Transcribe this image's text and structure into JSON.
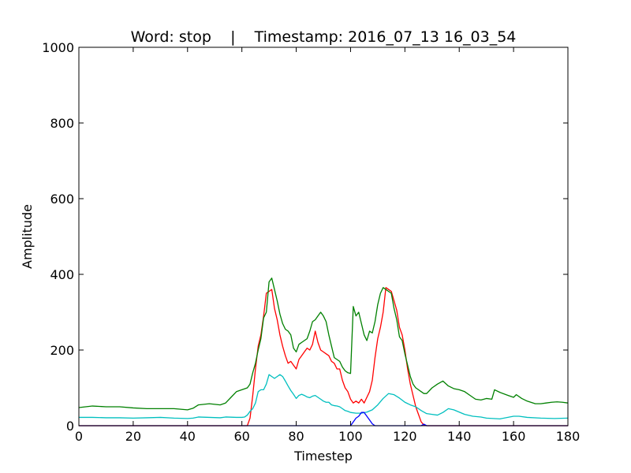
{
  "chart_data": {
    "type": "line",
    "title": "Word: stop    |    Timestamp: 2016_07_13 16_03_54",
    "xlabel": "Timestep",
    "ylabel": "Amplitude",
    "xlim": [
      0,
      180
    ],
    "ylim": [
      0,
      1000
    ],
    "xticks": [
      0,
      20,
      40,
      60,
      80,
      100,
      120,
      140,
      160,
      180
    ],
    "yticks": [
      0,
      200,
      400,
      600,
      800,
      1000
    ],
    "grid": false,
    "legend": null,
    "series": [
      {
        "color": "#ff0000",
        "points": [
          [
            0,
            0
          ],
          [
            60,
            0
          ],
          [
            62,
            0
          ],
          [
            63,
            20
          ],
          [
            64,
            80
          ],
          [
            65,
            150
          ],
          [
            66,
            210
          ],
          [
            67,
            240
          ],
          [
            68,
            290
          ],
          [
            69,
            350
          ],
          [
            70,
            355
          ],
          [
            71,
            360
          ],
          [
            72,
            310
          ],
          [
            73,
            280
          ],
          [
            74,
            240
          ],
          [
            75,
            210
          ],
          [
            76,
            185
          ],
          [
            77,
            165
          ],
          [
            78,
            170
          ],
          [
            79,
            160
          ],
          [
            80,
            150
          ],
          [
            81,
            175
          ],
          [
            82,
            185
          ],
          [
            83,
            195
          ],
          [
            84,
            205
          ],
          [
            85,
            200
          ],
          [
            86,
            215
          ],
          [
            87,
            250
          ],
          [
            88,
            220
          ],
          [
            89,
            200
          ],
          [
            90,
            195
          ],
          [
            91,
            190
          ],
          [
            92,
            185
          ],
          [
            93,
            170
          ],
          [
            94,
            165
          ],
          [
            95,
            150
          ],
          [
            96,
            150
          ],
          [
            97,
            120
          ],
          [
            98,
            100
          ],
          [
            99,
            90
          ],
          [
            100,
            70
          ],
          [
            101,
            60
          ],
          [
            102,
            65
          ],
          [
            103,
            60
          ],
          [
            104,
            70
          ],
          [
            105,
            60
          ],
          [
            106,
            75
          ],
          [
            107,
            90
          ],
          [
            108,
            120
          ],
          [
            109,
            180
          ],
          [
            110,
            230
          ],
          [
            111,
            260
          ],
          [
            112,
            300
          ],
          [
            113,
            365
          ],
          [
            114,
            360
          ],
          [
            115,
            355
          ],
          [
            116,
            330
          ],
          [
            117,
            305
          ],
          [
            118,
            260
          ],
          [
            119,
            240
          ],
          [
            120,
            200
          ],
          [
            121,
            150
          ],
          [
            122,
            110
          ],
          [
            123,
            80
          ],
          [
            124,
            50
          ],
          [
            125,
            30
          ],
          [
            126,
            10
          ],
          [
            127,
            2
          ],
          [
            128,
            0
          ],
          [
            180,
            0
          ]
        ]
      },
      {
        "color": "#008000",
        "points": [
          [
            0,
            48
          ],
          [
            5,
            52
          ],
          [
            10,
            50
          ],
          [
            15,
            50
          ],
          [
            20,
            47
          ],
          [
            25,
            45
          ],
          [
            30,
            45
          ],
          [
            35,
            45
          ],
          [
            40,
            42
          ],
          [
            42,
            46
          ],
          [
            44,
            55
          ],
          [
            48,
            58
          ],
          [
            52,
            55
          ],
          [
            54,
            60
          ],
          [
            56,
            75
          ],
          [
            58,
            90
          ],
          [
            60,
            95
          ],
          [
            62,
            100
          ],
          [
            63,
            110
          ],
          [
            64,
            140
          ],
          [
            65,
            165
          ],
          [
            66,
            200
          ],
          [
            67,
            230
          ],
          [
            68,
            285
          ],
          [
            69,
            300
          ],
          [
            70,
            380
          ],
          [
            71,
            390
          ],
          [
            72,
            360
          ],
          [
            73,
            330
          ],
          [
            74,
            295
          ],
          [
            75,
            270
          ],
          [
            76,
            255
          ],
          [
            77,
            250
          ],
          [
            78,
            240
          ],
          [
            79,
            205
          ],
          [
            80,
            195
          ],
          [
            81,
            215
          ],
          [
            82,
            220
          ],
          [
            83,
            225
          ],
          [
            84,
            230
          ],
          [
            85,
            250
          ],
          [
            86,
            275
          ],
          [
            87,
            280
          ],
          [
            88,
            290
          ],
          [
            89,
            300
          ],
          [
            90,
            290
          ],
          [
            91,
            275
          ],
          [
            92,
            240
          ],
          [
            93,
            210
          ],
          [
            94,
            180
          ],
          [
            95,
            175
          ],
          [
            96,
            170
          ],
          [
            97,
            155
          ],
          [
            98,
            145
          ],
          [
            99,
            140
          ],
          [
            100,
            138
          ],
          [
            101,
            315
          ],
          [
            102,
            290
          ],
          [
            103,
            300
          ],
          [
            104,
            270
          ],
          [
            105,
            240
          ],
          [
            106,
            225
          ],
          [
            107,
            250
          ],
          [
            108,
            245
          ],
          [
            109,
            275
          ],
          [
            110,
            320
          ],
          [
            111,
            350
          ],
          [
            112,
            365
          ],
          [
            113,
            360
          ],
          [
            114,
            355
          ],
          [
            115,
            350
          ],
          [
            116,
            310
          ],
          [
            117,
            280
          ],
          [
            118,
            235
          ],
          [
            119,
            225
          ],
          [
            120,
            190
          ],
          [
            121,
            160
          ],
          [
            122,
            130
          ],
          [
            123,
            110
          ],
          [
            124,
            100
          ],
          [
            125,
            95
          ],
          [
            126,
            90
          ],
          [
            127,
            85
          ],
          [
            128,
            85
          ],
          [
            130,
            100
          ],
          [
            132,
            110
          ],
          [
            134,
            118
          ],
          [
            136,
            105
          ],
          [
            138,
            98
          ],
          [
            140,
            95
          ],
          [
            142,
            90
          ],
          [
            144,
            80
          ],
          [
            146,
            70
          ],
          [
            148,
            68
          ],
          [
            150,
            72
          ],
          [
            152,
            70
          ],
          [
            153,
            95
          ],
          [
            155,
            88
          ],
          [
            158,
            80
          ],
          [
            160,
            75
          ],
          [
            161,
            82
          ],
          [
            163,
            72
          ],
          [
            165,
            65
          ],
          [
            168,
            58
          ],
          [
            170,
            58
          ],
          [
            172,
            60
          ],
          [
            174,
            62
          ],
          [
            176,
            63
          ],
          [
            178,
            62
          ],
          [
            180,
            60
          ]
        ]
      },
      {
        "color": "#00bfbf",
        "points": [
          [
            0,
            22
          ],
          [
            5,
            22
          ],
          [
            10,
            21
          ],
          [
            15,
            21
          ],
          [
            20,
            20
          ],
          [
            25,
            21
          ],
          [
            30,
            22
          ],
          [
            35,
            20
          ],
          [
            40,
            19
          ],
          [
            42,
            20
          ],
          [
            44,
            23
          ],
          [
            48,
            22
          ],
          [
            52,
            21
          ],
          [
            54,
            23
          ],
          [
            58,
            22
          ],
          [
            60,
            22
          ],
          [
            61,
            23
          ],
          [
            62,
            28
          ],
          [
            63,
            38
          ],
          [
            64,
            45
          ],
          [
            65,
            60
          ],
          [
            66,
            90
          ],
          [
            67,
            95
          ],
          [
            68,
            95
          ],
          [
            69,
            110
          ],
          [
            70,
            135
          ],
          [
            71,
            130
          ],
          [
            72,
            125
          ],
          [
            73,
            130
          ],
          [
            74,
            135
          ],
          [
            75,
            130
          ],
          [
            76,
            118
          ],
          [
            77,
            105
          ],
          [
            78,
            93
          ],
          [
            79,
            83
          ],
          [
            80,
            72
          ],
          [
            81,
            80
          ],
          [
            82,
            83
          ],
          [
            83,
            80
          ],
          [
            84,
            76
          ],
          [
            85,
            74
          ],
          [
            86,
            78
          ],
          [
            87,
            80
          ],
          [
            88,
            75
          ],
          [
            89,
            70
          ],
          [
            90,
            65
          ],
          [
            91,
            62
          ],
          [
            92,
            62
          ],
          [
            93,
            55
          ],
          [
            94,
            53
          ],
          [
            95,
            52
          ],
          [
            96,
            50
          ],
          [
            97,
            45
          ],
          [
            98,
            40
          ],
          [
            99,
            38
          ],
          [
            100,
            35
          ],
          [
            102,
            33
          ],
          [
            104,
            33
          ],
          [
            106,
            36
          ],
          [
            108,
            42
          ],
          [
            110,
            55
          ],
          [
            112,
            72
          ],
          [
            114,
            85
          ],
          [
            116,
            82
          ],
          [
            118,
            73
          ],
          [
            120,
            62
          ],
          [
            122,
            55
          ],
          [
            124,
            50
          ],
          [
            126,
            40
          ],
          [
            128,
            32
          ],
          [
            130,
            30
          ],
          [
            132,
            28
          ],
          [
            134,
            35
          ],
          [
            136,
            45
          ],
          [
            138,
            42
          ],
          [
            140,
            36
          ],
          [
            142,
            30
          ],
          [
            145,
            25
          ],
          [
            148,
            23
          ],
          [
            150,
            20
          ],
          [
            155,
            18
          ],
          [
            160,
            25
          ],
          [
            162,
            25
          ],
          [
            165,
            22
          ],
          [
            170,
            20
          ],
          [
            175,
            19
          ],
          [
            180,
            20
          ]
        ]
      },
      {
        "color": "#0000ff",
        "points": [
          [
            0,
            0
          ],
          [
            100,
            0
          ],
          [
            101,
            10
          ],
          [
            102,
            20
          ],
          [
            103,
            25
          ],
          [
            104,
            35
          ],
          [
            105,
            35
          ],
          [
            106,
            25
          ],
          [
            107,
            15
          ],
          [
            108,
            5
          ],
          [
            109,
            0
          ],
          [
            126,
            0
          ],
          [
            127,
            4
          ],
          [
            128,
            0
          ],
          [
            180,
            0
          ]
        ]
      }
    ]
  }
}
